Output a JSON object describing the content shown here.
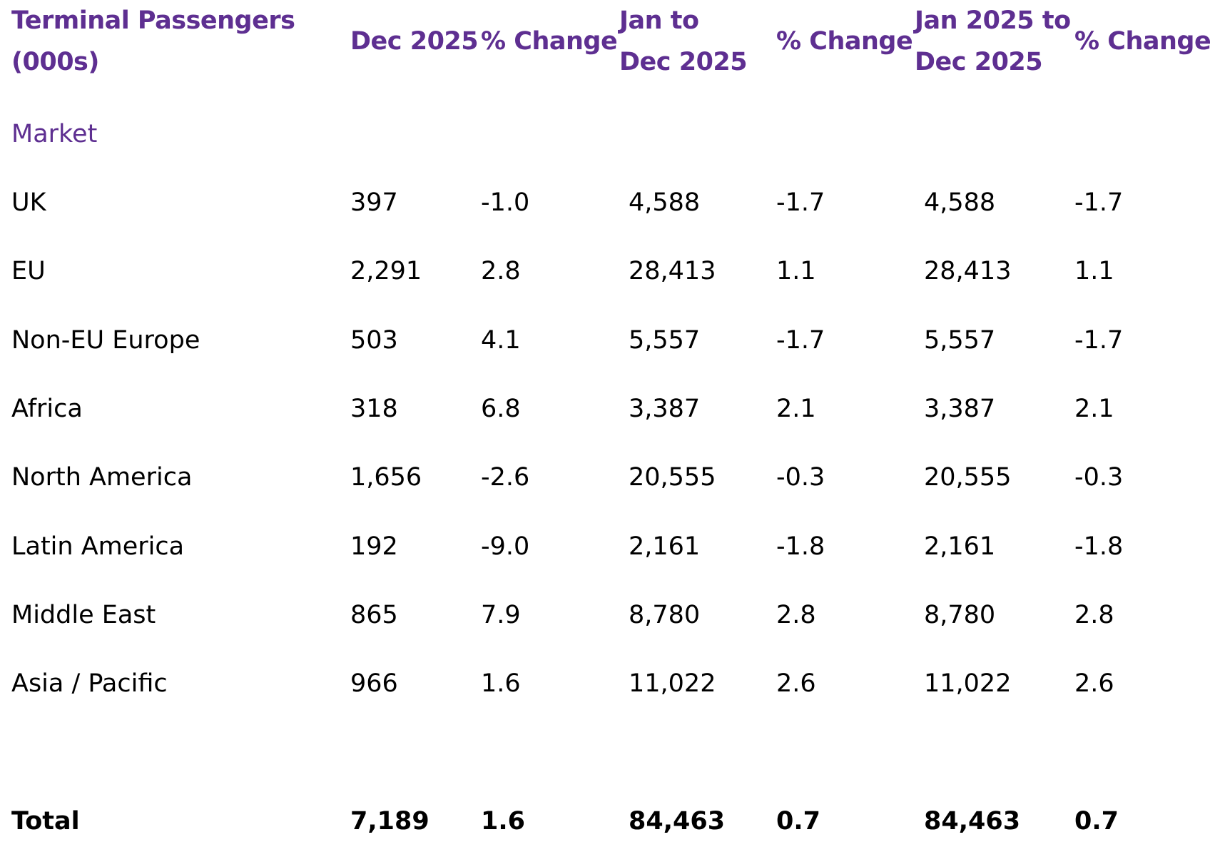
{
  "header": {
    "c0": [
      "Terminal Passengers",
      "(000s)"
    ],
    "c1": "Dec 2025",
    "c2": "% Change",
    "c3": [
      "Jan to",
      "Dec 2025"
    ],
    "c4": "% Change",
    "c5": [
      "Jan 2025 to",
      "Dec 2025"
    ],
    "c6": "% Change"
  },
  "section_label": "Market",
  "rows": [
    [
      "UK",
      "397",
      "-1.0",
      "4,588",
      "-1.7",
      "4,588",
      "-1.7"
    ],
    [
      "EU",
      "2,291",
      "2.8",
      "28,413",
      "1.1",
      "28,413",
      "1.1"
    ],
    [
      "Non-EU Europe",
      "503",
      "4.1",
      "5,557",
      "-1.7",
      "5,557",
      "-1.7"
    ],
    [
      "Africa",
      "318",
      "6.8",
      "3,387",
      "2.1",
      "3,387",
      "2.1"
    ],
    [
      "North America",
      "1,656",
      "-2.6",
      "20,555",
      "-0.3",
      "20,555",
      "-0.3"
    ],
    [
      "Latin America",
      "192",
      "-9.0",
      "2,161",
      "-1.8",
      "2,161",
      "-1.8"
    ],
    [
      "Middle East",
      "865",
      "7.9",
      "8,780",
      "2.8",
      "8,780",
      "2.8"
    ],
    [
      "Asia / Pacific",
      "966",
      "1.6",
      "11,022",
      "2.6",
      "11,022",
      "2.6"
    ]
  ],
  "total": [
    "Total",
    "7,189",
    "1.6",
    "84,463",
    "0.7",
    "84,463",
    "0.7"
  ]
}
